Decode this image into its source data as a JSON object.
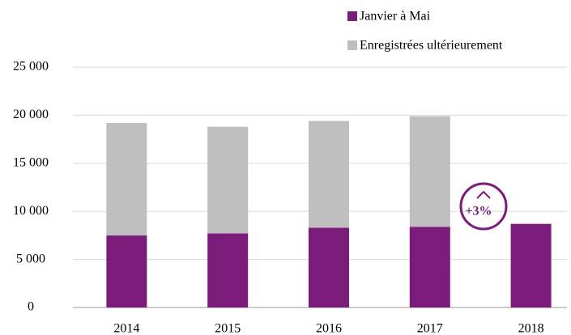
{
  "chart_data": {
    "type": "stacked_bar",
    "categories": [
      "2014",
      "2015",
      "2016",
      "2017",
      "2018"
    ],
    "series": [
      {
        "name": "Janvier à Mai",
        "color": "#7b1c7b",
        "values": [
          7500,
          7700,
          8300,
          8400,
          8700
        ]
      },
      {
        "name": "Enregistrées ultérieurement",
        "color": "#bfbfbf",
        "values": [
          11700,
          11100,
          11100,
          11500,
          null
        ]
      }
    ],
    "ylim": [
      0,
      25000
    ],
    "yticks": [
      0,
      {
        "value": 5000,
        "label": "5 000"
      },
      {
        "value": 10000,
        "label": "10 000"
      },
      {
        "value": 15000,
        "label": "15 000"
      },
      {
        "value": 20000,
        "label": "20 000"
      },
      {
        "value": 25000,
        "label": "25 000"
      }
    ],
    "grid": true,
    "legend": "top-right",
    "annotation": "+3%"
  }
}
